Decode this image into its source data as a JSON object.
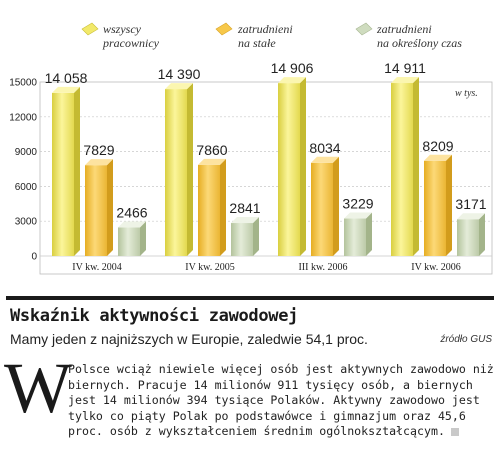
{
  "chart_data": {
    "type": "bar",
    "categories": [
      "IV kw. 2004",
      "IV kw. 2005",
      "III kw. 2006",
      "IV kw. 2006"
    ],
    "series": [
      {
        "name": "wszyscy pracownicy",
        "values": [
          14058,
          14390,
          14906,
          14911
        ],
        "labels": [
          "14 058",
          "14 390",
          "14 906",
          "14 911"
        ],
        "color": "#f2e96a"
      },
      {
        "name": "zatrudnieni na stałe",
        "values": [
          7829,
          7860,
          8034,
          8209
        ],
        "labels": [
          "7829",
          "7860",
          "8034",
          "8209"
        ],
        "color": "#f7c84a"
      },
      {
        "name": "zatrudnieni na określony czas",
        "values": [
          2466,
          2841,
          3229,
          3171
        ],
        "labels": [
          "2466",
          "2841",
          "3229",
          "3171"
        ],
        "color": "#cfdcbf"
      }
    ],
    "legend": [
      {
        "line1": "wszyscy",
        "line2": "pracownicy"
      },
      {
        "line1": "zatrudnieni",
        "line2": "na stałe"
      },
      {
        "line1": "zatrudnieni",
        "line2": "na określony czas"
      }
    ],
    "unit_label": "w tys.",
    "yticks": [
      "15000",
      "12000",
      "9000",
      "6000",
      "3000",
      "0"
    ],
    "ytick_values": [
      15000,
      12000,
      9000,
      6000,
      3000,
      0
    ],
    "ylim": [
      0,
      15000
    ],
    "grid": true,
    "legend_position": "top"
  },
  "article": {
    "title": "Wskaźnik aktywności zawodowej",
    "subtitle": "Mamy jeden z najniższych w Europie, zaledwie 54,1 proc.",
    "source": "źródło GUS",
    "dropcap": "W",
    "body": "Polsce wciąż niewiele więcej osób jest aktywnych zawodowo niż biernych. Pracuje 14 milionów 911 tysięcy osób, a biernych jest 14 milionów 394 tysiące Polaków. Aktywny zawodowo jest tylko co piąty Polak po podstawówce i gimnazjum oraz 45,6 proc. osób z wykształceniem średnim ogólnokształcącym."
  }
}
